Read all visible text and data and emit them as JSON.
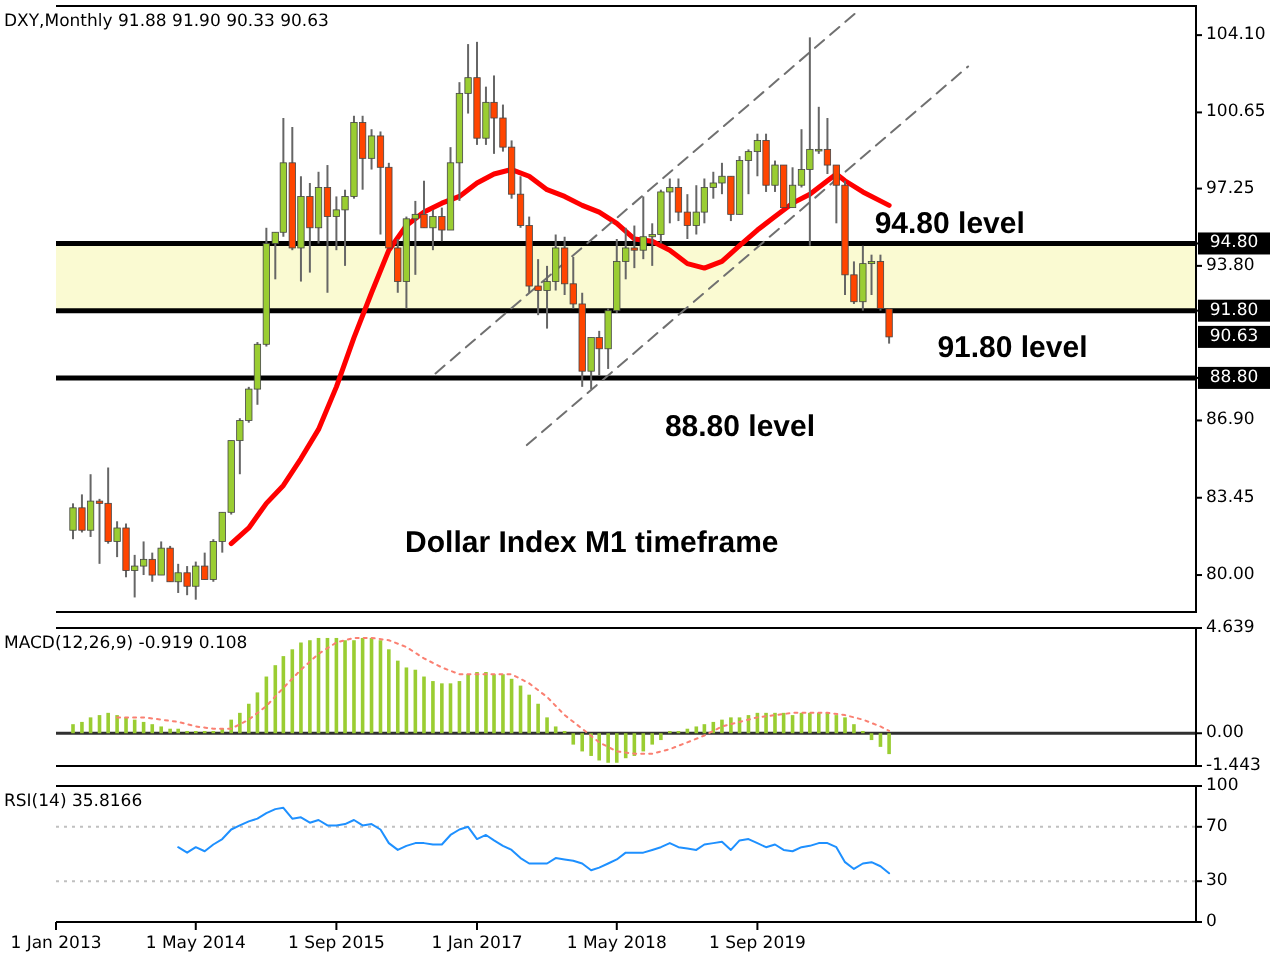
{
  "chart_data": [
    {
      "type": "candlestick",
      "title": "DXY,Monthly 91.88 91.90 90.33 90.63",
      "x": [
        "2013-03",
        "2013-04",
        "2013-05",
        "2013-06",
        "2013-07",
        "2013-08",
        "2013-09",
        "2013-10",
        "2013-11",
        "2013-12",
        "2014-01",
        "2014-02",
        "2014-03",
        "2014-04",
        "2014-05",
        "2014-06",
        "2014-07",
        "2014-08",
        "2014-09",
        "2014-10",
        "2014-11",
        "2014-12",
        "2015-01",
        "2015-02",
        "2015-03",
        "2015-04",
        "2015-05",
        "2015-06",
        "2015-07",
        "2015-08",
        "2015-09",
        "2015-10",
        "2015-11",
        "2015-12",
        "2016-01",
        "2016-02",
        "2016-03",
        "2016-04",
        "2016-05",
        "2016-06",
        "2016-07",
        "2016-08",
        "2016-09",
        "2016-10",
        "2016-11",
        "2016-12",
        "2017-01",
        "2017-02",
        "2017-03",
        "2017-04",
        "2017-05",
        "2017-06",
        "2017-07",
        "2017-08",
        "2017-09",
        "2017-10",
        "2017-11",
        "2017-12",
        "2018-01",
        "2018-02",
        "2018-03",
        "2018-04",
        "2018-05",
        "2018-06",
        "2018-07",
        "2018-08",
        "2018-09",
        "2018-10",
        "2018-11",
        "2018-12",
        "2019-01",
        "2019-02",
        "2019-03",
        "2019-04",
        "2019-05",
        "2019-06",
        "2019-07",
        "2019-08",
        "2019-09",
        "2019-10",
        "2019-11",
        "2019-12",
        "2020-01",
        "2020-02",
        "2020-03",
        "2020-04",
        "2020-05",
        "2020-06",
        "2020-07",
        "2020-08",
        "2020-09",
        "2020-10",
        "2020-11",
        "2020-12"
      ],
      "ohlc": [
        [
          82.0,
          83.2,
          81.6,
          83.0
        ],
        [
          83.0,
          83.6,
          81.9,
          82.0
        ],
        [
          82.0,
          84.5,
          81.7,
          83.3
        ],
        [
          83.3,
          83.4,
          80.5,
          83.2
        ],
        [
          83.2,
          84.8,
          81.4,
          81.5
        ],
        [
          81.5,
          82.4,
          80.8,
          82.1
        ],
        [
          82.1,
          82.3,
          79.9,
          80.2
        ],
        [
          80.2,
          80.9,
          79.0,
          80.4
        ],
        [
          80.4,
          81.5,
          80.0,
          80.7
        ],
        [
          80.7,
          81.0,
          79.7,
          80.0
        ],
        [
          80.0,
          81.5,
          80.0,
          81.2
        ],
        [
          81.2,
          81.3,
          79.7,
          79.7
        ],
        [
          79.7,
          80.5,
          79.2,
          80.1
        ],
        [
          80.1,
          80.4,
          79.1,
          79.5
        ],
        [
          79.5,
          80.6,
          78.9,
          80.4
        ],
        [
          80.4,
          81.0,
          79.8,
          79.8
        ],
        [
          79.8,
          81.6,
          79.7,
          81.5
        ],
        [
          81.5,
          82.8,
          81.0,
          82.8
        ],
        [
          82.8,
          86.0,
          82.7,
          86.0
        ],
        [
          86.0,
          87.0,
          84.5,
          86.9
        ],
        [
          86.9,
          88.4,
          86.8,
          88.3
        ],
        [
          88.3,
          90.4,
          87.6,
          90.3
        ],
        [
          90.3,
          95.5,
          90.2,
          94.8
        ],
        [
          94.8,
          95.3,
          93.2,
          95.3
        ],
        [
          95.3,
          100.4,
          95.1,
          98.4
        ],
        [
          98.4,
          100.0,
          94.5,
          94.6
        ],
        [
          94.6,
          97.8,
          93.1,
          96.9
        ],
        [
          96.9,
          97.5,
          93.5,
          95.5
        ],
        [
          95.5,
          98.0,
          94.8,
          97.3
        ],
        [
          97.3,
          98.3,
          92.6,
          96.0
        ],
        [
          96.0,
          96.9,
          94.5,
          96.3
        ],
        [
          96.3,
          97.2,
          93.8,
          96.9
        ],
        [
          96.9,
          100.5,
          96.8,
          100.2
        ],
        [
          100.2,
          100.5,
          97.2,
          98.6
        ],
        [
          98.6,
          99.9,
          98.1,
          99.6
        ],
        [
          99.6,
          99.8,
          95.2,
          98.2
        ],
        [
          98.2,
          98.4,
          94.6,
          94.6
        ],
        [
          94.6,
          95.0,
          92.6,
          93.1
        ],
        [
          93.1,
          96.0,
          91.9,
          95.9
        ],
        [
          95.9,
          96.7,
          93.4,
          96.1
        ],
        [
          96.1,
          97.6,
          95.5,
          95.5
        ],
        [
          95.5,
          96.3,
          94.5,
          96.0
        ],
        [
          96.0,
          96.4,
          94.9,
          95.4
        ],
        [
          95.4,
          99.1,
          95.4,
          98.4
        ],
        [
          98.4,
          102.0,
          96.7,
          101.5
        ],
        [
          101.5,
          103.7,
          100.6,
          102.2
        ],
        [
          102.2,
          103.8,
          99.2,
          99.5
        ],
        [
          99.5,
          101.8,
          99.2,
          101.1
        ],
        [
          101.1,
          102.3,
          98.8,
          100.4
        ],
        [
          100.4,
          101.0,
          98.9,
          99.1
        ],
        [
          99.1,
          99.4,
          96.8,
          97.0
        ],
        [
          97.0,
          97.8,
          95.5,
          95.6
        ],
        [
          95.6,
          96.0,
          92.6,
          92.9
        ],
        [
          92.9,
          94.1,
          91.6,
          92.7
        ],
        [
          92.7,
          93.8,
          91.0,
          93.1
        ],
        [
          93.1,
          95.2,
          92.7,
          94.6
        ],
        [
          94.6,
          95.1,
          92.5,
          93.0
        ],
        [
          93.0,
          94.2,
          91.9,
          92.1
        ],
        [
          92.1,
          92.6,
          88.4,
          89.1
        ],
        [
          89.1,
          90.6,
          88.3,
          90.6
        ],
        [
          90.6,
          90.9,
          88.9,
          90.1
        ],
        [
          90.1,
          91.9,
          89.2,
          91.8
        ],
        [
          91.8,
          95.0,
          91.7,
          94.0
        ],
        [
          94.0,
          95.5,
          93.2,
          94.6
        ],
        [
          94.6,
          95.6,
          93.7,
          94.5
        ],
        [
          94.5,
          96.9,
          94.1,
          95.1
        ],
        [
          95.1,
          95.7,
          93.8,
          95.2
        ],
        [
          95.2,
          97.2,
          94.8,
          97.1
        ],
        [
          97.1,
          97.7,
          95.7,
          97.3
        ],
        [
          97.3,
          97.7,
          95.8,
          96.2
        ],
        [
          96.2,
          97.0,
          95.0,
          95.6
        ],
        [
          95.6,
          97.4,
          95.2,
          96.2
        ],
        [
          96.2,
          97.7,
          95.7,
          97.3
        ],
        [
          97.3,
          98.0,
          96.8,
          97.5
        ],
        [
          97.5,
          98.4,
          97.0,
          97.8
        ],
        [
          97.8,
          97.8,
          95.8,
          96.1
        ],
        [
          96.1,
          98.7,
          96.1,
          98.5
        ],
        [
          98.5,
          99.0,
          97.0,
          98.9
        ],
        [
          98.9,
          99.7,
          97.8,
          99.4
        ],
        [
          99.4,
          99.7,
          97.1,
          97.4
        ],
        [
          97.4,
          98.5,
          97.1,
          98.3
        ],
        [
          98.3,
          98.3,
          96.4,
          96.4
        ],
        [
          96.4,
          98.2,
          96.4,
          97.4
        ],
        [
          97.4,
          99.9,
          97.3,
          98.1
        ],
        [
          98.1,
          104.0,
          94.7,
          99.0
        ],
        [
          99.0,
          100.9,
          98.8,
          99.0
        ],
        [
          99.0,
          100.4,
          97.9,
          98.3
        ],
        [
          98.3,
          98.3,
          95.7,
          97.4
        ],
        [
          97.4,
          97.6,
          92.5,
          93.4
        ],
        [
          93.4,
          94.0,
          92.1,
          92.2
        ],
        [
          92.2,
          94.7,
          91.8,
          93.9
        ],
        [
          93.9,
          94.3,
          92.5,
          94.0
        ],
        [
          94.0,
          94.3,
          91.8,
          91.9
        ],
        [
          91.88,
          91.9,
          90.33,
          90.63
        ]
      ],
      "colors": [
        "#9acd32",
        "#ff4500",
        "#9acd32",
        "#ff4500",
        "#ff4500",
        "#9acd32",
        "#ff4500",
        "#9acd32",
        "#9acd32",
        "#ff4500",
        "#9acd32",
        "#ff4500",
        "#9acd32",
        "#ff4500",
        "#9acd32",
        "#ff4500",
        "#9acd32",
        "#9acd32",
        "#9acd32",
        "#9acd32",
        "#9acd32",
        "#9acd32",
        "#9acd32",
        "#9acd32",
        "#9acd32",
        "#ff4500",
        "#9acd32",
        "#ff4500",
        "#9acd32",
        "#ff4500",
        "#9acd32",
        "#9acd32",
        "#9acd32",
        "#ff4500",
        "#9acd32",
        "#ff4500",
        "#ff4500",
        "#ff4500",
        "#9acd32",
        "#9acd32",
        "#ff4500",
        "#9acd32",
        "#ff4500",
        "#9acd32",
        "#9acd32",
        "#9acd32",
        "#ff4500",
        "#9acd32",
        "#ff4500",
        "#ff4500",
        "#ff4500",
        "#ff4500",
        "#ff4500",
        "#ff4500",
        "#9acd32",
        "#9acd32",
        "#ff4500",
        "#ff4500",
        "#ff4500",
        "#9acd32",
        "#ff4500",
        "#9acd32",
        "#9acd32",
        "#9acd32",
        "#ff4500",
        "#9acd32",
        "#9acd32",
        "#9acd32",
        "#9acd32",
        "#ff4500",
        "#ff4500",
        "#9acd32",
        "#9acd32",
        "#9acd32",
        "#9acd32",
        "#ff4500",
        "#9acd32",
        "#9acd32",
        "#9acd32",
        "#ff4500",
        "#9acd32",
        "#ff4500",
        "#9acd32",
        "#9acd32",
        "#9acd32",
        "#9acd32",
        "#ff4500",
        "#ff4500",
        "#ff4500",
        "#ff4500",
        "#9acd32",
        "#9acd32",
        "#ff4500",
        "#ff4500"
      ],
      "series": [
        {
          "type": "line",
          "color": "#ff0000",
          "x": [
            "2014-09",
            "2014-11",
            "2015-01",
            "2015-03",
            "2015-05",
            "2015-07",
            "2015-09",
            "2015-11",
            "2016-01",
            "2016-03",
            "2016-05",
            "2016-07",
            "2016-09",
            "2016-11",
            "2017-01",
            "2017-03",
            "2017-05",
            "2017-07",
            "2017-09",
            "2017-11",
            "2018-01",
            "2018-03",
            "2018-05",
            "2018-07",
            "2018-09",
            "2018-11",
            "2019-01",
            "2019-03",
            "2019-05",
            "2019-07",
            "2019-09",
            "2019-11",
            "2020-01",
            "2020-03",
            "2020-05",
            "2020-06",
            "2020-07",
            "2020-09",
            "2020-12"
          ],
          "values": [
            81.4,
            82.1,
            83.2,
            84.0,
            85.2,
            86.5,
            88.4,
            90.6,
            92.6,
            94.5,
            95.6,
            96.2,
            96.6,
            96.9,
            97.5,
            97.9,
            98.1,
            97.8,
            97.2,
            96.9,
            96.5,
            96.2,
            95.7,
            95.0,
            94.9,
            94.5,
            93.9,
            93.7,
            94.0,
            94.7,
            95.4,
            96.0,
            96.6,
            97.0,
            97.6,
            97.9,
            97.6,
            97.1,
            96.5
          ]
        },
        {
          "type": "line",
          "color": "#707070",
          "line_style": "dashed",
          "x": [
            "2016-08-10",
            "2020-08-08"
          ],
          "values": [
            89.0,
            105.1
          ]
        },
        {
          "type": "line",
          "color": "#707070",
          "line_style": "dashed",
          "x": [
            "2017-06-23",
            "2021-09-01"
          ],
          "values": [
            85.8,
            102.7
          ]
        }
      ],
      "xlim": [
        "2013-01-01",
        "2023-11-01"
      ],
      "ylim": [
        78.35,
        105.4
      ],
      "yticks": [
        {
          "value": 80,
          "label": "80.00"
        },
        {
          "value": 83.45,
          "label": "83.45"
        },
        {
          "value": 86.9,
          "label": "86.90"
        },
        {
          "value": 88.8,
          "label": "88.80"
        },
        {
          "value": 91.8,
          "label": "91.80"
        },
        {
          "value": 93.8,
          "label": "93.80"
        },
        {
          "value": 94.8,
          "label": "94.80"
        },
        {
          "value": 97.25,
          "label": "97.25"
        },
        {
          "value": 100.65,
          "label": "100.65"
        },
        {
          "value": 104.1,
          "label": "104.10"
        }
      ],
      "tick_labels": "y",
      "ref_lines": [
        {
          "axis": "y",
          "value": 94.8,
          "label": "94.80 level",
          "color": "#000000"
        },
        {
          "axis": "y",
          "value": 91.8,
          "label": "91.80 level",
          "color": "#000000"
        },
        {
          "axis": "y",
          "value": 88.8,
          "label": "88.80 level",
          "color": "#000000"
        }
      ],
      "bands": [
        {
          "axis": "y",
          "from": 91.8,
          "to": 94.8,
          "color": "#fafad2"
        }
      ],
      "annotations": [
        "Dollar Index M1 timeframe",
        {
          "text": "90.63",
          "y": 90.63
        }
      ]
    },
    {
      "type": "bar",
      "title": "MACD(12,26,9) -0.919 0.108",
      "x": [
        "2013-03",
        "2013-04",
        "2013-05",
        "2013-06",
        "2013-07",
        "2013-08",
        "2013-09",
        "2013-10",
        "2013-11",
        "2013-12",
        "2014-01",
        "2014-02",
        "2014-03",
        "2014-04",
        "2014-05",
        "2014-06",
        "2014-07",
        "2014-08",
        "2014-09",
        "2014-10",
        "2014-11",
        "2014-12",
        "2015-01",
        "2015-02",
        "2015-03",
        "2015-04",
        "2015-05",
        "2015-06",
        "2015-07",
        "2015-08",
        "2015-09",
        "2015-10",
        "2015-11",
        "2015-12",
        "2016-01",
        "2016-02",
        "2016-03",
        "2016-04",
        "2016-05",
        "2016-06",
        "2016-07",
        "2016-08",
        "2016-09",
        "2016-10",
        "2016-11",
        "2016-12",
        "2017-01",
        "2017-02",
        "2017-03",
        "2017-04",
        "2017-05",
        "2017-06",
        "2017-07",
        "2017-08",
        "2017-09",
        "2017-10",
        "2017-11",
        "2017-12",
        "2018-01",
        "2018-02",
        "2018-03",
        "2018-04",
        "2018-05",
        "2018-06",
        "2018-07",
        "2018-08",
        "2018-09",
        "2018-10",
        "2018-11",
        "2018-12",
        "2019-01",
        "2019-02",
        "2019-03",
        "2019-04",
        "2019-05",
        "2019-06",
        "2019-07",
        "2019-08",
        "2019-09",
        "2019-10",
        "2019-11",
        "2019-12",
        "2020-01",
        "2020-02",
        "2020-03",
        "2020-04",
        "2020-05",
        "2020-06",
        "2020-07",
        "2020-08",
        "2020-09",
        "2020-10",
        "2020-11",
        "2020-12"
      ],
      "series": [
        {
          "color": "#9acd32",
          "values": [
            0.4,
            0.5,
            0.7,
            0.8,
            0.9,
            0.8,
            0.7,
            0.6,
            0.5,
            0.4,
            0.3,
            0.2,
            0.2,
            0.1,
            0.1,
            0.1,
            0.1,
            0.2,
            0.6,
            0.9,
            1.3,
            1.8,
            2.5,
            3.0,
            3.4,
            3.7,
            4.0,
            4.1,
            4.2,
            4.2,
            4.2,
            4.1,
            4.1,
            4.2,
            4.2,
            4.1,
            3.7,
            3.2,
            2.9,
            2.8,
            2.5,
            2.3,
            2.2,
            2.2,
            2.3,
            2.6,
            2.7,
            2.7,
            2.6,
            2.6,
            2.4,
            2.1,
            1.7,
            1.3,
            0.7,
            0.3,
            0.1,
            -0.5,
            -0.8,
            -1.0,
            -1.2,
            -1.3,
            -1.3,
            -1.1,
            -1.0,
            -0.8,
            -0.5,
            -0.3,
            0.1,
            0.1,
            0.2,
            0.3,
            0.4,
            0.5,
            0.6,
            0.7,
            0.7,
            0.8,
            0.9,
            0.9,
            0.9,
            0.9,
            0.8,
            0.9,
            0.9,
            0.9,
            0.9,
            0.8,
            0.7,
            0.4,
            0.1,
            -0.3,
            -0.6,
            -0.919
          ]
        },
        {
          "type": "line",
          "color": "#fa8072",
          "line_style": "dotted",
          "x": [
            "2013-08",
            "2013-09",
            "2013-11",
            "2014-01",
            "2014-03",
            "2014-05",
            "2014-07",
            "2014-09",
            "2014-11",
            "2015-01",
            "2015-03",
            "2015-05",
            "2015-07",
            "2015-09",
            "2015-11",
            "2016-01",
            "2016-03",
            "2016-05",
            "2016-07",
            "2016-09",
            "2016-11",
            "2017-01",
            "2017-03",
            "2017-05",
            "2017-07",
            "2017-09",
            "2017-11",
            "2018-01",
            "2018-03",
            "2018-05",
            "2018-07",
            "2018-09",
            "2018-11",
            "2019-01",
            "2019-03",
            "2019-05",
            "2019-07",
            "2019-09",
            "2019-11",
            "2020-01",
            "2020-03",
            "2020-05",
            "2020-07",
            "2020-09",
            "2020-11",
            "2020-12"
          ],
          "values": [
            0.7,
            0.7,
            0.7,
            0.6,
            0.5,
            0.3,
            0.2,
            0.2,
            0.6,
            1.2,
            2.0,
            2.8,
            3.5,
            4.0,
            4.2,
            4.2,
            4.1,
            3.8,
            3.3,
            2.9,
            2.6,
            2.6,
            2.6,
            2.6,
            2.2,
            1.6,
            0.8,
            0.2,
            -0.4,
            -0.8,
            -0.9,
            -0.9,
            -0.7,
            -0.4,
            -0.1,
            0.3,
            0.5,
            0.7,
            0.8,
            0.9,
            0.9,
            0.9,
            0.8,
            0.6,
            0.3,
            0.108
          ]
        }
      ],
      "xlim": [
        "2013-01-01",
        "2023-11-01"
      ],
      "ylim": [
        -1.443,
        4.639
      ],
      "yticks": [
        4.639,
        {
          "value": 0,
          "label": "0.00"
        },
        -1.443
      ],
      "tick_labels": "y",
      "ref_lines": [
        {
          "axis": "y",
          "value": 0,
          "color": "#303030"
        }
      ]
    },
    {
      "type": "line",
      "title": "RSI(14) 35.8166",
      "x": [
        "2014-03",
        "2014-04",
        "2014-05",
        "2014-06",
        "2014-07",
        "2014-08",
        "2014-09",
        "2014-10",
        "2014-11",
        "2014-12",
        "2015-01",
        "2015-02",
        "2015-03",
        "2015-04",
        "2015-05",
        "2015-06",
        "2015-07",
        "2015-08",
        "2015-09",
        "2015-10",
        "2015-11",
        "2015-12",
        "2016-01",
        "2016-02",
        "2016-03",
        "2016-04",
        "2016-05",
        "2016-06",
        "2016-07",
        "2016-08",
        "2016-09",
        "2016-10",
        "2016-11",
        "2016-12",
        "2017-01",
        "2017-02",
        "2017-03",
        "2017-04",
        "2017-05",
        "2017-06",
        "2017-07",
        "2017-08",
        "2017-09",
        "2017-10",
        "2017-11",
        "2017-12",
        "2018-01",
        "2018-02",
        "2018-03",
        "2018-04",
        "2018-05",
        "2018-06",
        "2018-07",
        "2018-08",
        "2018-09",
        "2018-10",
        "2018-11",
        "2018-12",
        "2019-01",
        "2019-02",
        "2019-03",
        "2019-04",
        "2019-05",
        "2019-06",
        "2019-07",
        "2019-08",
        "2019-09",
        "2019-10",
        "2019-11",
        "2019-12",
        "2020-01",
        "2020-02",
        "2020-03",
        "2020-04",
        "2020-05",
        "2020-06",
        "2020-07",
        "2020-08",
        "2020-09",
        "2020-10",
        "2020-11",
        "2020-12"
      ],
      "series": [
        {
          "color": "#1e90ff",
          "values": [
            55,
            51,
            55,
            52,
            57,
            61,
            68,
            71,
            74,
            76,
            80,
            83,
            84,
            76,
            77,
            73,
            75,
            71,
            71,
            72,
            75,
            71,
            72,
            68,
            58,
            53,
            56,
            58,
            58,
            57,
            57,
            64,
            68,
            70,
            61,
            64,
            60,
            56,
            53,
            47,
            43,
            43,
            43,
            47,
            46,
            45,
            43,
            38,
            40,
            43,
            46,
            51,
            51,
            51,
            53,
            55,
            58,
            55,
            54,
            53,
            57,
            58,
            59,
            53,
            60,
            61,
            58,
            55,
            57,
            53,
            52,
            55,
            56,
            58,
            58,
            55,
            44,
            39,
            43,
            44,
            41,
            35.8166
          ]
        }
      ],
      "xlim": [
        "2013-01-01",
        "2023-11-01"
      ],
      "ylim": [
        0,
        100
      ],
      "yticks": [
        0,
        30,
        70,
        100
      ],
      "xticks": [
        {
          "value": "2013-01-01",
          "label": "1 Jan 2013"
        },
        {
          "value": "2014-05-01",
          "label": "1 May 2014"
        },
        {
          "value": "2015-09-01",
          "label": "1 Sep 2015"
        },
        {
          "value": "2017-01-01",
          "label": "1 Jan 2017"
        },
        {
          "value": "2018-05-01",
          "label": "1 May 2018"
        },
        {
          "value": "2019-09-01",
          "label": "1 Sep 2019"
        }
      ],
      "ref_lines": [
        {
          "axis": "y",
          "value": 30,
          "color": "#c0c0c0",
          "line_style": "dotted"
        },
        {
          "axis": "y",
          "value": 70,
          "color": "#c0c0c0",
          "line_style": "dotted"
        }
      ]
    }
  ]
}
